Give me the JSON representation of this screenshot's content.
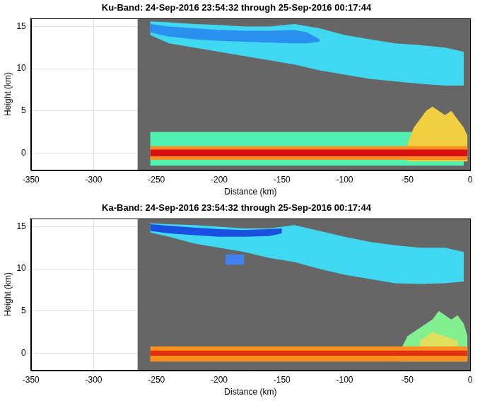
{
  "chart_data": [
    {
      "type": "area",
      "title": "Ku-Band: 24-Sep-2016 23:54:32 through 25-Sep-2016 00:17:44",
      "x_label": "Distance (km)",
      "y_label": "Height (km)",
      "xlim": [
        -350,
        0
      ],
      "xticks": [
        -350,
        -300,
        -250,
        -200,
        -150,
        -100,
        -50,
        0
      ],
      "ylim": [
        -2,
        16
      ],
      "yticks": [
        0,
        5,
        10,
        15
      ],
      "grid": true,
      "coverage": {
        "x": [
          -265,
          0
        ],
        "color": "#666666"
      },
      "series": [
        {
          "color": "#40d8f0",
          "x": [
            -255,
            -240,
            -220,
            -200,
            -180,
            -160,
            -140,
            -120,
            -100,
            -80,
            -60,
            -40,
            -20,
            -5
          ],
          "bottom": [
            14.0,
            13.0,
            12.5,
            12.0,
            11.5,
            11.0,
            10.5,
            9.8,
            9.3,
            8.8,
            8.5,
            8.2,
            8.0,
            8.0
          ],
          "top": [
            15.6,
            15.5,
            15.3,
            15.2,
            15.0,
            15.0,
            15.3,
            14.8,
            14.0,
            13.5,
            13.0,
            12.8,
            12.5,
            12.0
          ]
        },
        {
          "color": "#2a90f0",
          "x": [
            -255,
            -240,
            -220,
            -200,
            -180,
            -160,
            -140,
            -130,
            -120
          ],
          "bottom": [
            14.3,
            13.8,
            13.5,
            13.3,
            13.2,
            13.1,
            13.0,
            13.0,
            13.2
          ],
          "top": [
            15.3,
            15.0,
            14.8,
            14.6,
            14.5,
            14.5,
            14.6,
            14.3,
            13.5
          ]
        },
        {
          "color": "#50f0b0",
          "x": [
            -255,
            -5
          ],
          "bottom": [
            -1.5,
            -1.5
          ],
          "top": [
            2.5,
            2.5
          ]
        },
        {
          "color": "#f0d040",
          "x": [
            -50,
            -45,
            -40,
            -35,
            -30,
            -25,
            -20,
            -15,
            -10,
            -5,
            -2
          ],
          "bottom": [
            -1,
            -1,
            -1,
            -1,
            -1,
            -1,
            -1,
            -1,
            -1,
            -1,
            -1
          ],
          "top": [
            1,
            3,
            4,
            5,
            5.5,
            5,
            4.5,
            5,
            4,
            3,
            2
          ]
        },
        {
          "color": "#ff8c20",
          "x": [
            -255,
            -2
          ],
          "bottom": [
            -0.8,
            -0.8
          ],
          "top": [
            0.8,
            0.8
          ]
        },
        {
          "color": "#d81010",
          "x": [
            -255,
            -2
          ],
          "bottom": [
            -0.4,
            -0.4
          ],
          "top": [
            0.4,
            0.4
          ]
        }
      ]
    },
    {
      "type": "area",
      "title": "Ka-Band: 24-Sep-2016 23:54:32 through 25-Sep-2016 00:17:44",
      "x_label": "Distance (km)",
      "y_label": "Height (km)",
      "xlim": [
        -350,
        0
      ],
      "xticks": [
        -350,
        -300,
        -250,
        -200,
        -150,
        -100,
        -50,
        0
      ],
      "ylim": [
        -2,
        16
      ],
      "yticks": [
        0,
        5,
        10,
        15
      ],
      "grid": true,
      "coverage": {
        "x": [
          -265,
          0
        ],
        "color": "#666666"
      },
      "series": [
        {
          "color": "#40d8f0",
          "x": [
            -255,
            -240,
            -220,
            -200,
            -180,
            -160,
            -140,
            -120,
            -100,
            -80,
            -60,
            -40,
            -20,
            -5
          ],
          "bottom": [
            14.3,
            13.8,
            13.0,
            12.5,
            12.0,
            11.3,
            10.8,
            10.0,
            9.3,
            8.8,
            8.3,
            8.2,
            8.3,
            8.5
          ],
          "top": [
            15.4,
            15.3,
            15.2,
            15.0,
            14.8,
            14.8,
            15.2,
            14.5,
            13.8,
            13.2,
            12.8,
            12.5,
            12.5,
            12.0
          ]
        },
        {
          "color": "#1a50e0",
          "x": [
            -255,
            -240,
            -220,
            -200,
            -180,
            -160,
            -150
          ],
          "bottom": [
            14.5,
            14.2,
            14.0,
            13.8,
            13.8,
            13.9,
            14.2
          ],
          "top": [
            15.3,
            15.1,
            14.9,
            14.7,
            14.6,
            14.7,
            14.8
          ]
        },
        {
          "color": "#4080f0",
          "x": [
            -195,
            -180
          ],
          "bottom": [
            10.5,
            10.5
          ],
          "top": [
            11.7,
            11.7
          ]
        },
        {
          "color": "#80f090",
          "x": [
            -55,
            -50,
            -40,
            -30,
            -25,
            -20,
            -15,
            -10,
            -5,
            -2
          ],
          "bottom": [
            -1,
            -1,
            -1,
            -1,
            -1,
            -1,
            -1,
            -1,
            -1,
            -1
          ],
          "top": [
            0.5,
            2,
            3,
            4,
            5,
            4.5,
            4,
            4.5,
            3.5,
            2
          ]
        },
        {
          "color": "#e0e060",
          "x": [
            -40,
            -30,
            -20,
            -10
          ],
          "bottom": [
            -0.5,
            -0.5,
            -0.5,
            -0.5
          ],
          "top": [
            1.5,
            2.5,
            2,
            1.5
          ]
        },
        {
          "color": "#ff9020",
          "x": [
            -255,
            -2
          ],
          "bottom": [
            -1.0,
            -1.0
          ],
          "top": [
            0.8,
            0.8
          ]
        },
        {
          "color": "#e03010",
          "x": [
            -255,
            -2
          ],
          "bottom": [
            -0.3,
            -0.3
          ],
          "top": [
            0.3,
            0.3
          ]
        }
      ]
    }
  ]
}
